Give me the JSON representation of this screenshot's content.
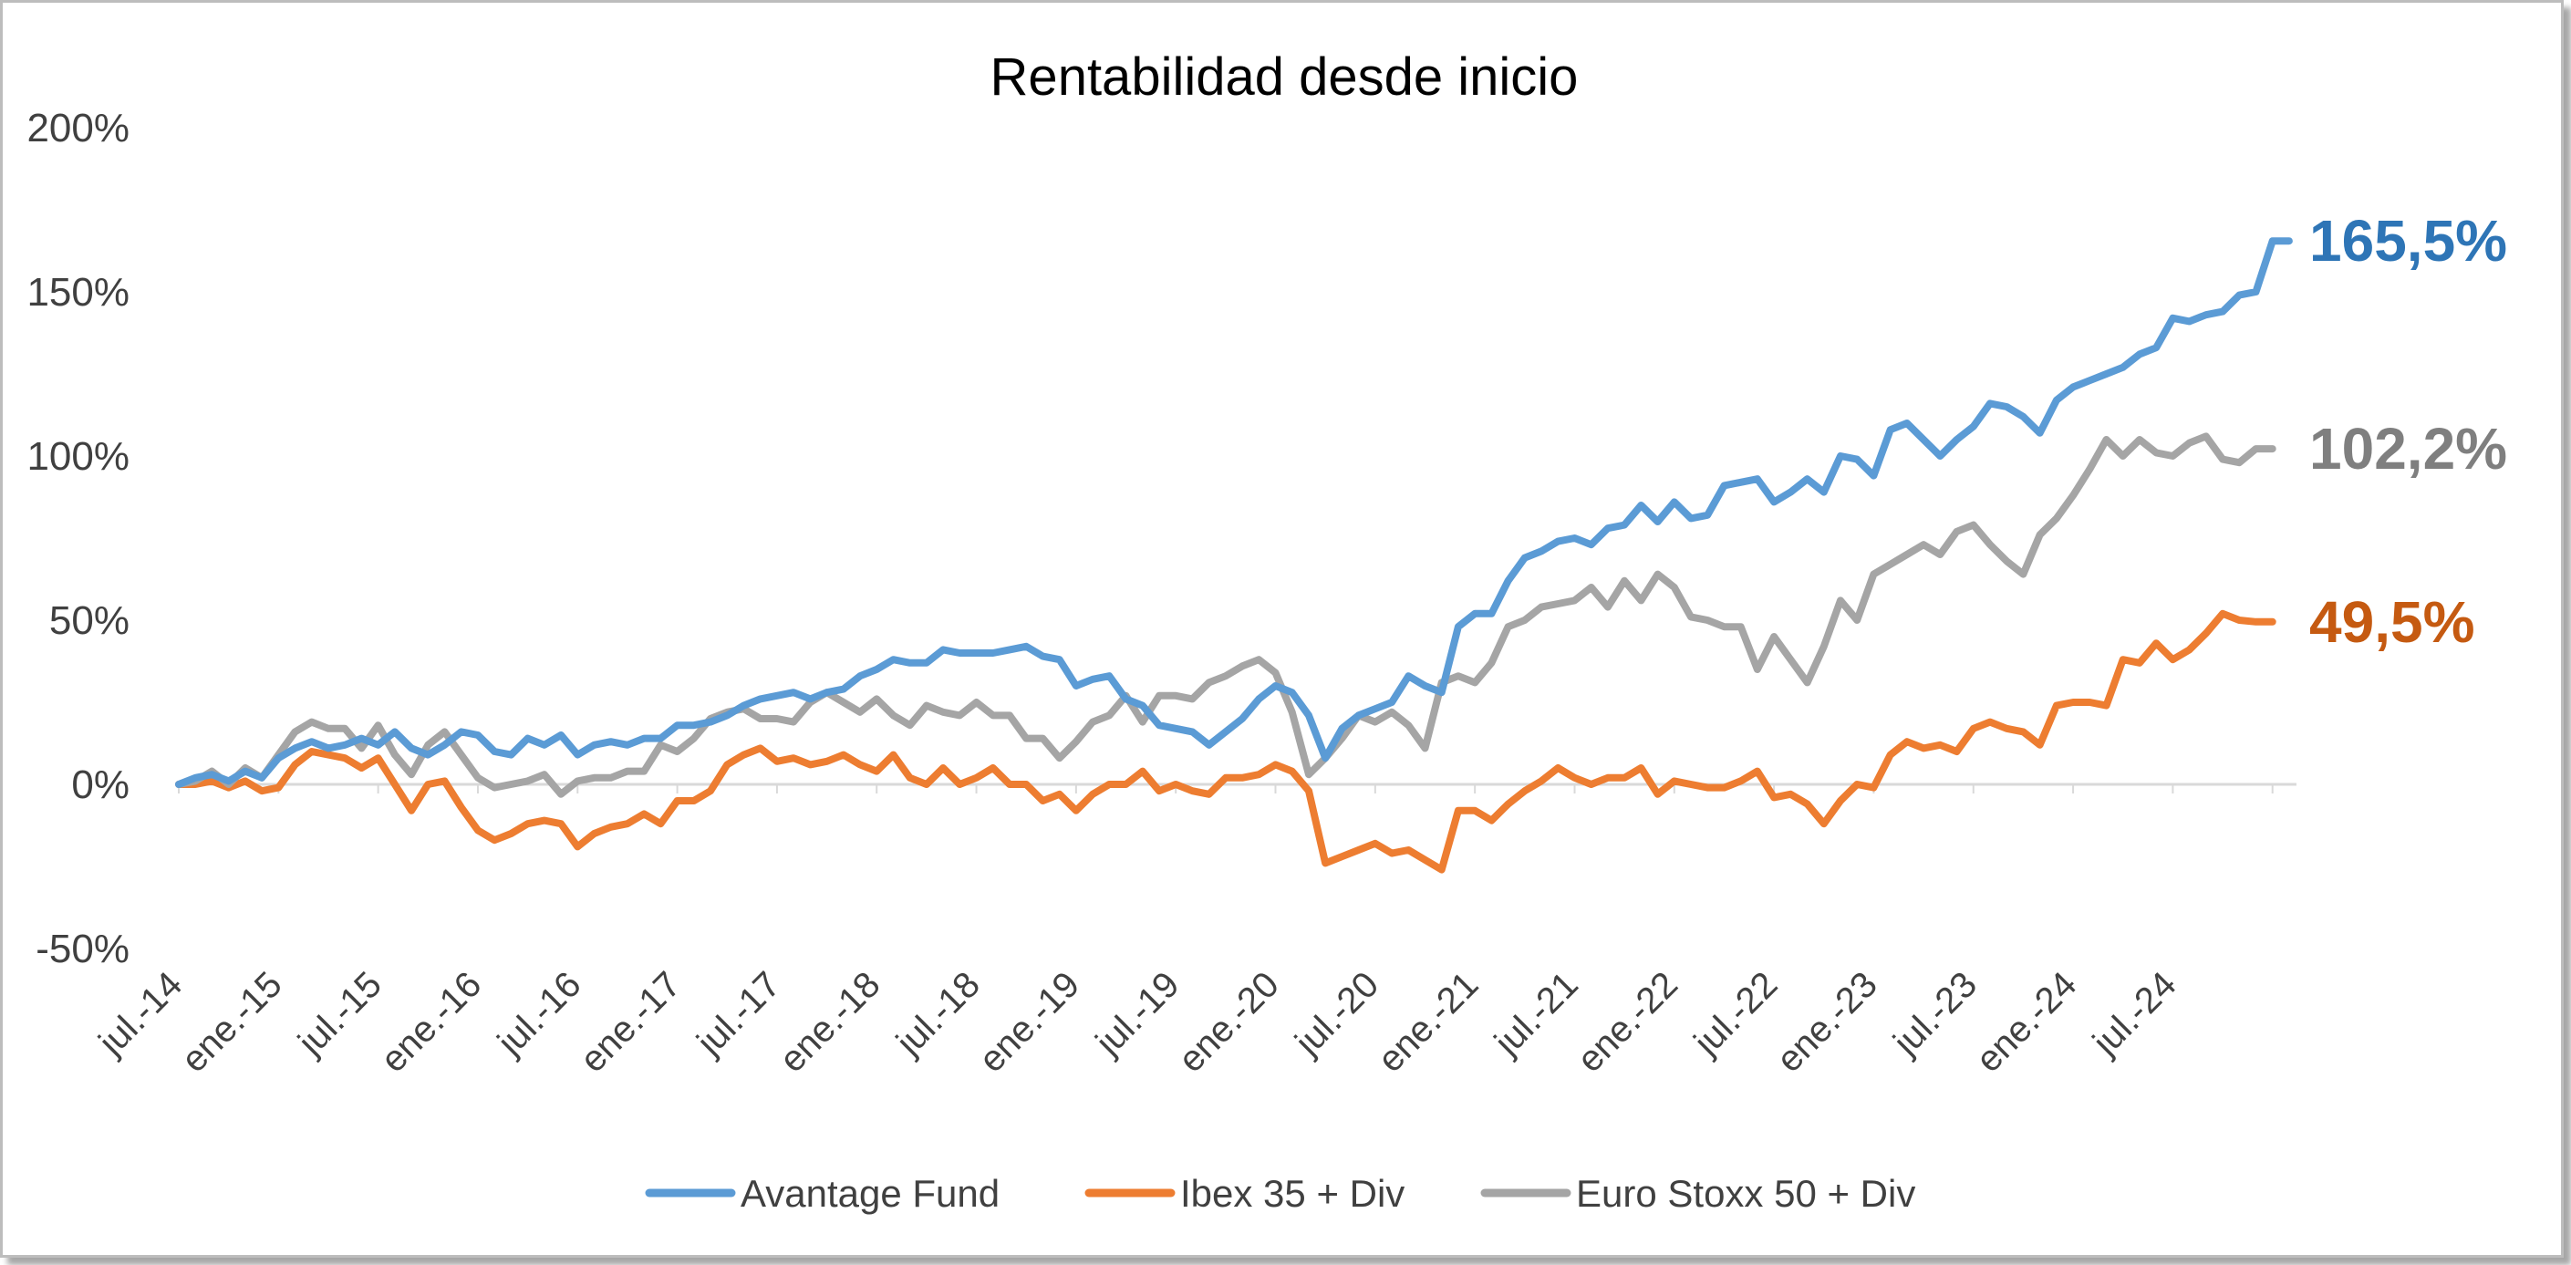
{
  "chart_data": {
    "type": "line",
    "title": "Rentabilidad desde inicio",
    "xlabel": "",
    "ylabel": "",
    "ylim": [
      -0.5,
      2.0
    ],
    "yticks": [
      -0.5,
      0,
      0.5,
      1.0,
      1.5,
      2.0
    ],
    "ytick_labels": [
      "-50%",
      "0%",
      "50%",
      "100%",
      "150%",
      "200%"
    ],
    "x_start": "jul.-14",
    "xticks": [
      {
        "i": 0,
        "label": "jul.-14"
      },
      {
        "i": 6,
        "label": "ene.-15"
      },
      {
        "i": 12,
        "label": "jul.-15"
      },
      {
        "i": 18,
        "label": "ene.-16"
      },
      {
        "i": 24,
        "label": "jul.-16"
      },
      {
        "i": 30,
        "label": "ene.-17"
      },
      {
        "i": 36,
        "label": "jul.-17"
      },
      {
        "i": 42,
        "label": "ene.-18"
      },
      {
        "i": 48,
        "label": "jul.-18"
      },
      {
        "i": 54,
        "label": "ene.-19"
      },
      {
        "i": 60,
        "label": "jul.-19"
      },
      {
        "i": 66,
        "label": "ene.-20"
      },
      {
        "i": 72,
        "label": "jul.-20"
      },
      {
        "i": 78,
        "label": "ene.-21"
      },
      {
        "i": 84,
        "label": "jul.-21"
      },
      {
        "i": 90,
        "label": "ene.-22"
      },
      {
        "i": 96,
        "label": "jul.-22"
      },
      {
        "i": 102,
        "label": "ene.-23"
      },
      {
        "i": 108,
        "label": "jul.-23"
      },
      {
        "i": 114,
        "label": "ene.-24"
      },
      {
        "i": 120,
        "label": "jul.-24"
      }
    ],
    "grid": false,
    "legend": "bottom",
    "series": [
      {
        "name": "Avantage Fund",
        "color": "#5b9bd5",
        "end_label": "165,5%",
        "end_label_color": "#2e75b6",
        "values": [
          0.0,
          0.02,
          0.03,
          0.01,
          0.04,
          0.02,
          0.08,
          0.11,
          0.13,
          0.11,
          0.12,
          0.14,
          0.12,
          0.16,
          0.11,
          0.09,
          0.12,
          0.16,
          0.15,
          0.1,
          0.09,
          0.14,
          0.12,
          0.15,
          0.09,
          0.12,
          0.13,
          0.12,
          0.14,
          0.14,
          0.18,
          0.18,
          0.19,
          0.21,
          0.24,
          0.26,
          0.27,
          0.28,
          0.26,
          0.28,
          0.29,
          0.33,
          0.35,
          0.38,
          0.37,
          0.37,
          0.41,
          0.4,
          0.4,
          0.4,
          0.41,
          0.42,
          0.39,
          0.38,
          0.3,
          0.32,
          0.33,
          0.26,
          0.24,
          0.18,
          0.17,
          0.16,
          0.12,
          0.16,
          0.2,
          0.26,
          0.3,
          0.28,
          0.21,
          0.08,
          0.17,
          0.21,
          0.23,
          0.25,
          0.33,
          0.3,
          0.28,
          0.48,
          0.52,
          0.52,
          0.62,
          0.69,
          0.71,
          0.74,
          0.75,
          0.73,
          0.78,
          0.79,
          0.85,
          0.8,
          0.86,
          0.81,
          0.82,
          0.91,
          0.92,
          0.93,
          0.86,
          0.89,
          0.93,
          0.89,
          1.0,
          0.99,
          0.94,
          1.08,
          1.1,
          1.05,
          1.0,
          1.05,
          1.09,
          1.16,
          1.15,
          1.12,
          1.07,
          1.17,
          1.21,
          1.23,
          1.25,
          1.27,
          1.31,
          1.33,
          1.42,
          1.41,
          1.43,
          1.44,
          1.49,
          1.5,
          1.655,
          1.655
        ]
      },
      {
        "name": "Ibex 35 + Div",
        "color": "#ed7d31",
        "end_label": "49,5%",
        "end_label_color": "#c55a11",
        "values": [
          0.0,
          0.0,
          0.01,
          -0.01,
          0.01,
          -0.02,
          -0.01,
          0.06,
          0.1,
          0.09,
          0.08,
          0.05,
          0.08,
          0.0,
          -0.08,
          0.0,
          0.01,
          -0.07,
          -0.14,
          -0.17,
          -0.15,
          -0.12,
          -0.11,
          -0.12,
          -0.19,
          -0.15,
          -0.13,
          -0.12,
          -0.09,
          -0.12,
          -0.05,
          -0.05,
          -0.02,
          0.06,
          0.09,
          0.11,
          0.07,
          0.08,
          0.06,
          0.07,
          0.09,
          0.06,
          0.04,
          0.09,
          0.02,
          0.0,
          0.05,
          0.0,
          0.02,
          0.05,
          0.0,
          0.0,
          -0.05,
          -0.03,
          -0.08,
          -0.03,
          0.0,
          0.0,
          0.04,
          -0.02,
          0.0,
          -0.02,
          -0.03,
          0.02,
          0.02,
          0.03,
          0.06,
          0.04,
          -0.02,
          -0.24,
          -0.22,
          -0.2,
          -0.18,
          -0.21,
          -0.2,
          -0.23,
          -0.26,
          -0.08,
          -0.08,
          -0.11,
          -0.06,
          -0.02,
          0.01,
          0.05,
          0.02,
          0.0,
          0.02,
          0.02,
          0.05,
          -0.03,
          0.01,
          0.0,
          -0.01,
          -0.01,
          0.01,
          0.04,
          -0.04,
          -0.03,
          -0.06,
          -0.12,
          -0.05,
          0.0,
          -0.01,
          0.09,
          0.13,
          0.11,
          0.12,
          0.1,
          0.17,
          0.19,
          0.17,
          0.16,
          0.12,
          0.24,
          0.25,
          0.25,
          0.24,
          0.38,
          0.37,
          0.43,
          0.38,
          0.41,
          0.46,
          0.52,
          0.5,
          0.495,
          0.495
        ]
      },
      {
        "name": "Euro Stoxx 50 + Div",
        "color": "#a5a5a5",
        "end_label": "102,2%",
        "end_label_color": "#7f7f7f",
        "values": [
          0.0,
          0.01,
          0.04,
          0.0,
          0.05,
          0.02,
          0.09,
          0.16,
          0.19,
          0.17,
          0.17,
          0.11,
          0.18,
          0.09,
          0.03,
          0.12,
          0.16,
          0.09,
          0.02,
          -0.01,
          0.0,
          0.01,
          0.03,
          -0.03,
          0.01,
          0.02,
          0.02,
          0.04,
          0.04,
          0.12,
          0.1,
          0.14,
          0.2,
          0.22,
          0.23,
          0.2,
          0.2,
          0.19,
          0.25,
          0.28,
          0.25,
          0.22,
          0.26,
          0.21,
          0.18,
          0.24,
          0.22,
          0.21,
          0.25,
          0.21,
          0.21,
          0.14,
          0.14,
          0.08,
          0.13,
          0.19,
          0.21,
          0.27,
          0.19,
          0.27,
          0.27,
          0.26,
          0.31,
          0.33,
          0.36,
          0.38,
          0.34,
          0.22,
          0.03,
          0.08,
          0.14,
          0.21,
          0.19,
          0.22,
          0.18,
          0.11,
          0.31,
          0.33,
          0.31,
          0.37,
          0.48,
          0.5,
          0.54,
          0.55,
          0.56,
          0.6,
          0.54,
          0.62,
          0.56,
          0.64,
          0.6,
          0.51,
          0.5,
          0.48,
          0.48,
          0.35,
          0.45,
          0.38,
          0.31,
          0.42,
          0.56,
          0.5,
          0.64,
          0.67,
          0.7,
          0.73,
          0.7,
          0.77,
          0.79,
          0.73,
          0.68,
          0.64,
          0.76,
          0.81,
          0.88,
          0.96,
          1.05,
          1.0,
          1.05,
          1.01,
          1.0,
          1.04,
          1.06,
          0.99,
          0.98,
          1.022,
          1.022
        ]
      }
    ]
  }
}
